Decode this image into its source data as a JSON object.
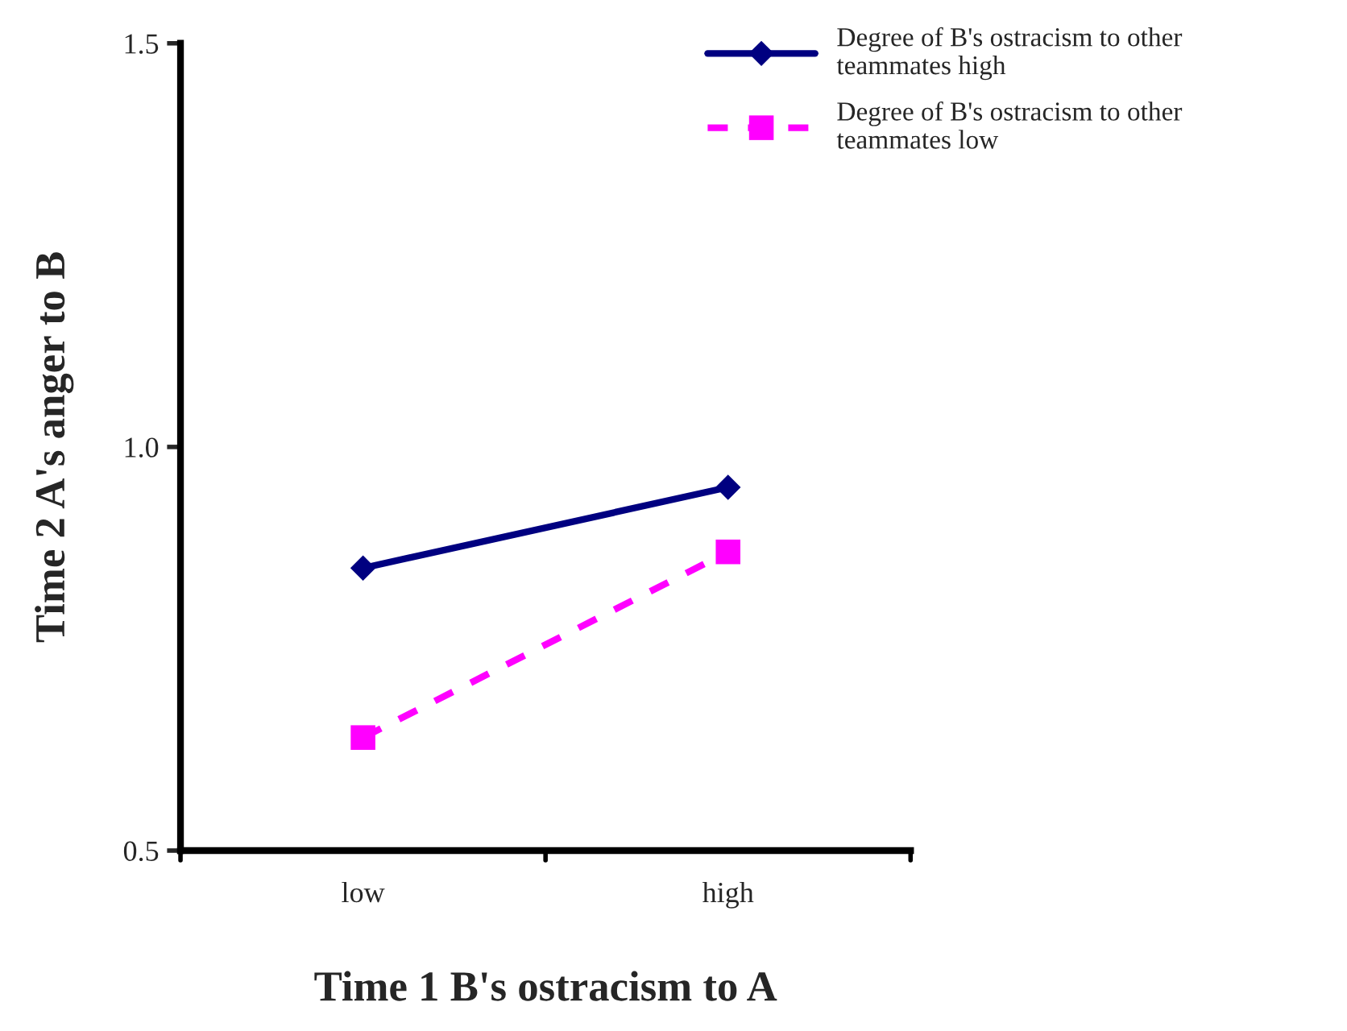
{
  "chart_data": {
    "type": "line",
    "xlabel": "Time 1 B's ostracism to A",
    "ylabel": "Time 2 A's anger to B",
    "categories": [
      "low",
      "high"
    ],
    "series": [
      {
        "name": "Degree of B's ostracism to other\nteammates high",
        "color": "#000080",
        "values": [
          0.85,
          0.95
        ],
        "marker": "diamond",
        "line_style": "solid"
      },
      {
        "name": "Degree of B's ostracism to other\nteammates low",
        "color": "#ff00ff",
        "values": [
          0.64,
          0.87
        ],
        "marker": "square",
        "line_style": "dashed"
      }
    ],
    "ylim": [
      0.5,
      1.5
    ],
    "yticks": [
      {
        "value": 0.5,
        "label": "0.5"
      },
      {
        "value": 1.0,
        "label": "1.0"
      },
      {
        "value": 1.5,
        "label": "1.5"
      }
    ],
    "grid": false,
    "legend": "top right"
  }
}
